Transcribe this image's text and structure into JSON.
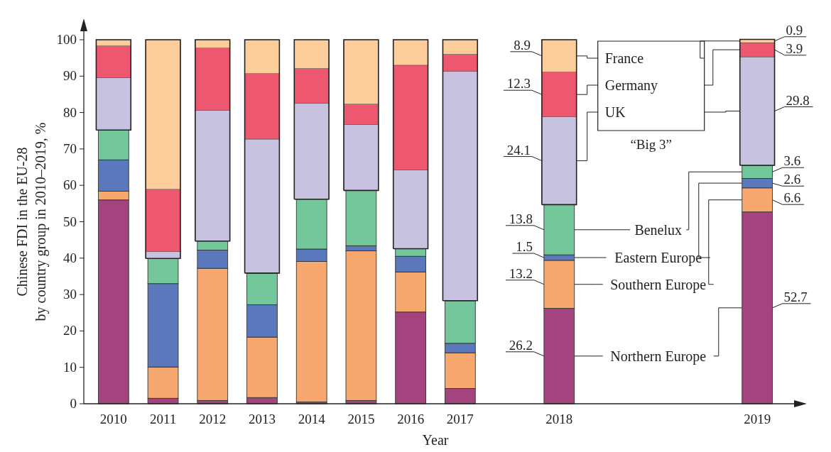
{
  "chart_data": {
    "type": "bar",
    "stacked": true,
    "xlabel": "Year",
    "ylabel": "Chinese FDI in the EU-28\nby country group in 2010–2019, %",
    "ylim": [
      0,
      100
    ],
    "yticks": [
      0,
      10,
      20,
      30,
      40,
      50,
      60,
      70,
      80,
      90,
      100
    ],
    "legend": false,
    "grid": false,
    "categories": [
      "2010",
      "2011",
      "2012",
      "2013",
      "2014",
      "2015",
      "2016",
      "2017",
      null,
      "2018",
      null,
      null,
      null,
      "2019"
    ],
    "annotations": [
      "“Big 3”"
    ],
    "series": [
      {
        "name": "Northern Europe",
        "color": "#a3447f",
        "values": [
          56.0,
          1.5,
          0.9,
          1.7,
          0.5,
          0.9,
          25.2,
          4.2,
          null,
          26.2,
          null,
          null,
          null,
          52.7
        ],
        "value_labels": [
          null,
          null,
          null,
          null,
          null,
          null,
          null,
          null,
          null,
          "26.2",
          null,
          null,
          null,
          "52.7"
        ]
      },
      {
        "name": "Southern Europe",
        "color": "#f6a86e",
        "values": [
          2.4,
          8.6,
          36.3,
          16.6,
          38.6,
          41.1,
          11.0,
          9.8,
          null,
          13.2,
          null,
          null,
          null,
          6.6
        ],
        "value_labels": [
          null,
          null,
          null,
          null,
          null,
          null,
          null,
          null,
          null,
          "13.2",
          null,
          null,
          null,
          "6.6"
        ]
      },
      {
        "name": "Eastern Europe",
        "color": "#5c78bc",
        "values": [
          8.6,
          22.9,
          5.0,
          8.9,
          3.4,
          1.4,
          4.3,
          2.6,
          null,
          1.5,
          null,
          null,
          null,
          2.6
        ],
        "value_labels": [
          null,
          null,
          null,
          null,
          null,
          null,
          null,
          null,
          null,
          "1.5",
          null,
          null,
          null,
          "2.6"
        ]
      },
      {
        "name": "Benelux",
        "color": "#74c79a",
        "values": [
          8.2,
          6.9,
          2.5,
          8.7,
          13.7,
          15.2,
          2.1,
          11.7,
          null,
          13.8,
          null,
          null,
          null,
          3.6
        ],
        "value_labels": [
          null,
          null,
          null,
          null,
          null,
          null,
          null,
          null,
          null,
          "13.8",
          null,
          null,
          null,
          "3.6"
        ]
      },
      {
        "name": "UK",
        "color": "#c6c2e0",
        "values": [
          14.4,
          1.9,
          35.9,
          36.8,
          26.4,
          18.1,
          21.6,
          63.0,
          null,
          24.1,
          null,
          null,
          null,
          29.8
        ],
        "value_labels": [
          null,
          null,
          null,
          null,
          null,
          null,
          null,
          null,
          null,
          "24.1",
          null,
          null,
          null,
          "29.8"
        ]
      },
      {
        "name": "Germany",
        "color": "#ee5770",
        "values": [
          8.7,
          17.1,
          17.1,
          18.0,
          9.5,
          5.6,
          28.8,
          4.7,
          null,
          12.3,
          null,
          null,
          null,
          3.9
        ],
        "value_labels": [
          null,
          null,
          null,
          null,
          null,
          null,
          null,
          null,
          null,
          "12.3",
          null,
          null,
          null,
          "3.9"
        ]
      },
      {
        "name": "France",
        "color": "#fdcd9b",
        "values": [
          1.7,
          41.1,
          2.3,
          9.3,
          7.9,
          17.7,
          7.0,
          4.0,
          null,
          8.9,
          null,
          null,
          null,
          0.9
        ],
        "value_labels": [
          null,
          null,
          null,
          null,
          null,
          null,
          null,
          null,
          null,
          "8.9",
          null,
          null,
          null,
          "0.9"
        ]
      }
    ]
  }
}
